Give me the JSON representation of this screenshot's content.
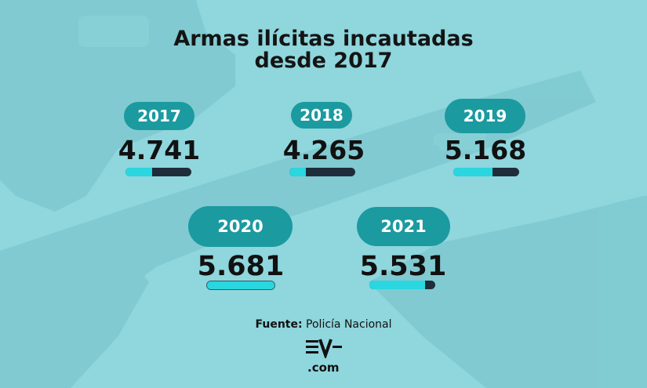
{
  "title_line1": "Armas ilícitas incautadas",
  "title_line2": "desde 2017",
  "source_label": "Fuente:",
  "source_value": "Policía Nacional",
  "logo_text": ".com",
  "chart_data": {
    "type": "bar",
    "title": "Armas ilícitas incautadas desde 2017",
    "categories": [
      "2017",
      "2018",
      "2019",
      "2020",
      "2021"
    ],
    "labels": [
      "4.741",
      "4.265",
      "5.168",
      "5.681",
      "5.531"
    ],
    "values": [
      4741,
      4265,
      5168,
      5681,
      5531
    ],
    "bar_fill_fraction": [
      0.4,
      0.25,
      0.6,
      1.0,
      0.85
    ],
    "colors": {
      "pill": "#1b9aa0",
      "bar_fill": "#2ad6df",
      "bar_track": "#1f2d3a",
      "background": "#8fd6dd"
    }
  }
}
